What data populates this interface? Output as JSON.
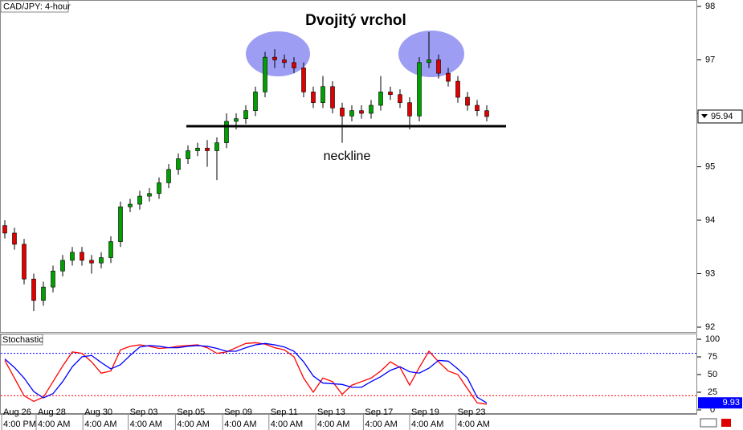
{
  "chart_data": [
    {
      "type": "candlestick",
      "title": "Dvojitý vrchol",
      "label": "CAD/JPY: 4-hour",
      "annotation": "neckline",
      "open": [
        93.9,
        93.76,
        93.55,
        92.9,
        92.5,
        92.75,
        93.05,
        93.25,
        93.4,
        93.25,
        93.2,
        93.3,
        93.6,
        94.25,
        94.3,
        94.45,
        94.5,
        94.7,
        94.95,
        95.15,
        95.3,
        95.35,
        95.3,
        95.45,
        95.85,
        95.9,
        96.05,
        96.4,
        97.05,
        97.0,
        96.95,
        96.85,
        96.4,
        96.2,
        96.5,
        96.1,
        95.95,
        96.05,
        96.0,
        96.15,
        96.4,
        96.35,
        96.2,
        95.95,
        96.95,
        97.0,
        96.75,
        96.6,
        96.3,
        96.15,
        96.05
      ],
      "high": [
        94.0,
        93.86,
        93.65,
        93.0,
        92.85,
        93.15,
        93.35,
        93.5,
        93.5,
        93.35,
        93.4,
        93.7,
        94.35,
        94.4,
        94.55,
        94.6,
        94.8,
        95.05,
        95.25,
        95.4,
        95.45,
        95.5,
        95.55,
        96.0,
        96.0,
        96.15,
        96.5,
        97.15,
        97.2,
        97.1,
        97.05,
        96.95,
        96.5,
        96.7,
        96.6,
        96.2,
        96.15,
        96.15,
        96.25,
        96.7,
        96.5,
        96.45,
        96.3,
        97.05,
        97.52,
        97.1,
        96.85,
        96.7,
        96.4,
        96.25,
        96.15
      ],
      "low": [
        93.66,
        93.45,
        92.8,
        92.3,
        92.4,
        92.65,
        92.95,
        93.15,
        93.15,
        93.0,
        93.1,
        93.2,
        93.5,
        94.15,
        94.2,
        94.35,
        94.4,
        94.6,
        94.85,
        95.05,
        95.2,
        95.0,
        94.75,
        95.35,
        95.7,
        95.8,
        95.95,
        96.3,
        96.85,
        96.85,
        96.75,
        96.3,
        96.1,
        96.1,
        96.0,
        95.45,
        95.85,
        95.9,
        95.9,
        96.05,
        96.25,
        96.1,
        95.7,
        95.85,
        96.85,
        96.65,
        96.5,
        96.2,
        96.05,
        95.95,
        95.85
      ],
      "close": [
        93.76,
        93.55,
        92.9,
        92.5,
        92.75,
        93.05,
        93.25,
        93.4,
        93.25,
        93.2,
        93.3,
        93.6,
        94.25,
        94.3,
        94.45,
        94.5,
        94.7,
        94.95,
        95.15,
        95.3,
        95.35,
        95.3,
        95.45,
        95.85,
        95.9,
        96.05,
        96.4,
        97.05,
        97.0,
        96.95,
        96.85,
        96.4,
        96.2,
        96.5,
        96.1,
        95.95,
        96.05,
        96.0,
        96.15,
        96.4,
        96.35,
        96.2,
        95.95,
        96.95,
        97.0,
        96.75,
        96.6,
        96.3,
        96.15,
        96.05,
        95.94
      ],
      "up_color": "#00a000",
      "down_color": "#e00000",
      "ylim": [
        91.91,
        98.12
      ],
      "yticks": [
        92,
        93,
        94,
        95,
        96,
        97,
        98
      ],
      "last_price": 95.94,
      "xticks": [
        {
          "value": -0.33,
          "label": "Aug 26"
        },
        {
          "value": 3.25,
          "label": "Aug 28"
        },
        {
          "value": 8.1,
          "label": "Aug 30"
        },
        {
          "value": 12.8,
          "label": "Sep 03"
        },
        {
          "value": 17.7,
          "label": "Sep 05"
        },
        {
          "value": 22.6,
          "label": "Sep 09"
        },
        {
          "value": 27.4,
          "label": "Sep 11"
        },
        {
          "value": 32.25,
          "label": "Sep 13"
        },
        {
          "value": 37.2,
          "label": "Sep 17"
        },
        {
          "value": 42,
          "label": "Sep 19"
        },
        {
          "value": 46.8,
          "label": "Sep 23"
        }
      ],
      "xtick_times": [
        "4:00 PM",
        "4:00 AM",
        "4:00 AM",
        "4:00 AM",
        "4:00 AM",
        "4:00 AM",
        "4:00 AM",
        "4:00 AM",
        "4:00 AM",
        "4:00 AM",
        "4:00 AM"
      ]
    },
    {
      "type": "line",
      "label": "Stochastic",
      "series": [
        {
          "color": "#ff0000",
          "values": [
            70,
            45,
            20,
            12,
            18,
            40,
            62,
            82,
            80,
            68,
            52,
            55,
            85,
            90,
            92,
            90,
            87,
            88,
            90,
            91,
            92,
            88,
            80,
            82,
            88,
            94,
            95,
            93,
            88,
            85,
            75,
            45,
            25,
            45,
            40,
            22,
            35,
            40,
            45,
            55,
            68,
            60,
            35,
            60,
            83,
            68,
            55,
            50,
            30,
            10,
            8
          ]
        },
        {
          "color": "#0000ff",
          "values": [
            72,
            60,
            45,
            26,
            17,
            23,
            40,
            61,
            75,
            77,
            67,
            58,
            64,
            77,
            89,
            91,
            90,
            88,
            88,
            90,
            91,
            90,
            87,
            83,
            83,
            88,
            92,
            94,
            92,
            89,
            83,
            68,
            48,
            38,
            37,
            36,
            32,
            32,
            40,
            47,
            56,
            61,
            54,
            52,
            59,
            70,
            69,
            58,
            45,
            18,
            9.93
          ]
        }
      ],
      "levels": [
        {
          "value": 80,
          "color": "#0000ff"
        },
        {
          "value": 20,
          "color": "#ff0000"
        }
      ],
      "ylim": [
        -5.7,
        108
      ],
      "yticks": [
        0,
        25,
        50,
        75,
        100
      ]
    }
  ]
}
